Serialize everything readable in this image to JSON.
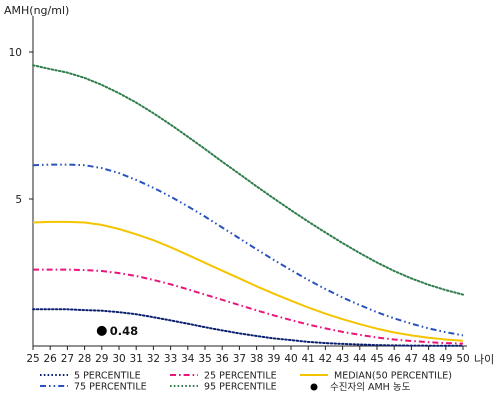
{
  "chart_data": {
    "type": "line",
    "ylabel": "AMH(ng/ml)",
    "xlabel": "나이",
    "xlim": [
      25,
      50
    ],
    "ylim": [
      0,
      11
    ],
    "x_ticks": [
      25,
      26,
      27,
      28,
      29,
      30,
      31,
      32,
      33,
      34,
      35,
      36,
      37,
      38,
      39,
      40,
      41,
      42,
      43,
      44,
      45,
      46,
      47,
      48,
      49,
      50
    ],
    "y_ticks": [
      5,
      10
    ],
    "grid": false,
    "legend_position": "bottom",
    "x": [
      25,
      26,
      27,
      28,
      29,
      30,
      31,
      32,
      33,
      34,
      35,
      36,
      37,
      38,
      39,
      40,
      41,
      42,
      43,
      44,
      45,
      46,
      47,
      48,
      49,
      50
    ],
    "series": [
      {
        "name": "5 PERCENTILE",
        "color": "#0a1f6e",
        "style": "dotted",
        "values": [
          1.25,
          1.25,
          1.25,
          1.22,
          1.2,
          1.15,
          1.08,
          0.98,
          0.87,
          0.76,
          0.64,
          0.53,
          0.43,
          0.34,
          0.26,
          0.2,
          0.14,
          0.1,
          0.07,
          0.05,
          0.03,
          0.02,
          0.015,
          0.01,
          0.01,
          0.01
        ]
      },
      {
        "name": "25 PERCENTILE",
        "color": "#e8157a",
        "style": "dashdot",
        "values": [
          2.6,
          2.6,
          2.6,
          2.58,
          2.55,
          2.48,
          2.38,
          2.25,
          2.1,
          1.93,
          1.75,
          1.57,
          1.39,
          1.21,
          1.04,
          0.88,
          0.73,
          0.6,
          0.48,
          0.38,
          0.29,
          0.22,
          0.17,
          0.13,
          0.1,
          0.08
        ]
      },
      {
        "name": "MEDIAN(50 PERCENTILE)",
        "color": "#f5c400",
        "style": "solid",
        "values": [
          4.2,
          4.22,
          4.22,
          4.2,
          4.12,
          3.98,
          3.8,
          3.6,
          3.36,
          3.1,
          2.83,
          2.56,
          2.3,
          2.03,
          1.78,
          1.54,
          1.31,
          1.1,
          0.91,
          0.74,
          0.59,
          0.46,
          0.36,
          0.28,
          0.22,
          0.18
        ]
      },
      {
        "name": "75 PERCENTILE",
        "color": "#2a52be",
        "style": "dashdotdot",
        "values": [
          6.15,
          6.17,
          6.17,
          6.15,
          6.05,
          5.88,
          5.65,
          5.38,
          5.08,
          4.75,
          4.4,
          4.03,
          3.66,
          3.29,
          2.93,
          2.58,
          2.25,
          1.94,
          1.65,
          1.39,
          1.15,
          0.94,
          0.76,
          0.6,
          0.47,
          0.36
        ]
      },
      {
        "name": "95 PERCENTILE",
        "color": "#2e7d4a",
        "style": "dotted",
        "values": [
          9.55,
          9.42,
          9.3,
          9.12,
          8.88,
          8.6,
          8.28,
          7.92,
          7.53,
          7.12,
          6.7,
          6.27,
          5.85,
          5.43,
          5.02,
          4.62,
          4.23,
          3.86,
          3.5,
          3.16,
          2.84,
          2.55,
          2.3,
          2.08,
          1.9,
          1.75
        ]
      }
    ],
    "marker": {
      "name": "수진자의 AMH 농도",
      "x": 29,
      "y": 0.48,
      "label": "0.48",
      "color": "#000000"
    }
  }
}
